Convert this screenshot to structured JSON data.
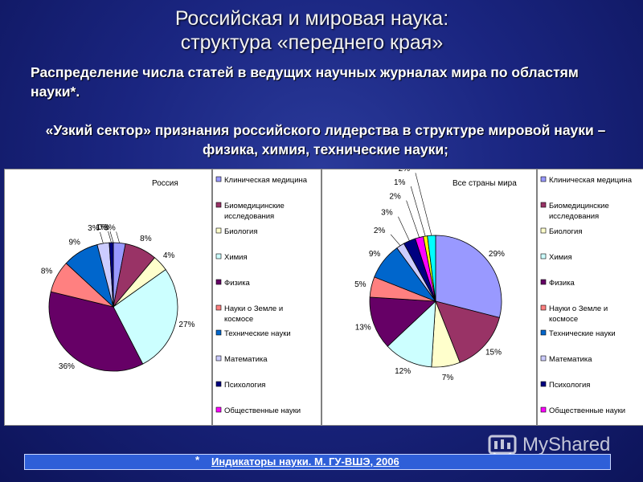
{
  "header": {
    "title_line1": "Российская и мировая наука:",
    "title_line2": "структура «переднего края»",
    "subtitle": "Распределение числа статей в ведущих научных журналах мира по областям науки*.",
    "highlight": "«Узкий сектор» признания российского лидерства в структуре мировой науки – физика, химия, технические науки;"
  },
  "footer": {
    "star": "*",
    "reference": "Индикаторы науки. М. ГУ-ВШЭ, 2006"
  },
  "watermark": {
    "text": "MyShared"
  },
  "colors": {
    "slice_colors": [
      "#9999ff",
      "#993366",
      "#ffffcc",
      "#ccffff",
      "#660066",
      "#ff8080",
      "#0066cc",
      "#ccccff",
      "#000080",
      "#ff00ff",
      "#ffff00",
      "#00ffff"
    ],
    "background": "#1a2580",
    "footer_bar": "#2f5fd8"
  },
  "chart_data": [
    {
      "type": "pie",
      "title": "Россия",
      "categories": [
        "Клиническая медицина",
        "Биомедицинские исследования",
        "Биология",
        "Химия",
        "Физика",
        "Науки о Земле и космосе",
        "Технические науки",
        "Математика",
        "Психология",
        "Общественные науки"
      ],
      "values": [
        3,
        8,
        4,
        27,
        36,
        8,
        9,
        3,
        1,
        0
      ],
      "value_labels": [
        "3%",
        "8%",
        "4%",
        "27%",
        "36%",
        "8%",
        "9%",
        "3%",
        "1%",
        "0%"
      ],
      "legend": [
        "Клиническая медицина",
        "Биомедицинские исследования",
        "Биология",
        "Химия",
        "Физика",
        "Науки о Земле и космосе",
        "Технические науки",
        "Математика",
        "Психология",
        "Общественные науки"
      ],
      "legend_position": "right"
    },
    {
      "type": "pie",
      "title": "Все страны мира",
      "categories": [
        "Клиническая медицина",
        "Биомедицинские исследования",
        "Биология",
        "Химия",
        "Физика",
        "Науки о Земле и космосе",
        "Технические науки",
        "Математика",
        "Психология",
        "Общественные науки",
        "",
        ""
      ],
      "values": [
        29,
        15,
        7,
        12,
        13,
        5,
        9,
        2,
        3,
        2,
        1,
        2
      ],
      "value_labels": [
        "29%",
        "15%",
        "7%",
        "12%",
        "13%",
        "5%",
        "9%",
        "2%",
        "3%",
        "2%",
        "1%",
        "2%"
      ],
      "legend": [
        "Клиническая медицина",
        "Биомедицинские исследования",
        "Биология",
        "Химия",
        "Физика",
        "Науки о Земле и космосе",
        "Технические науки",
        "Математика",
        "Психология",
        "Общественные науки"
      ],
      "legend_position": "right"
    }
  ]
}
